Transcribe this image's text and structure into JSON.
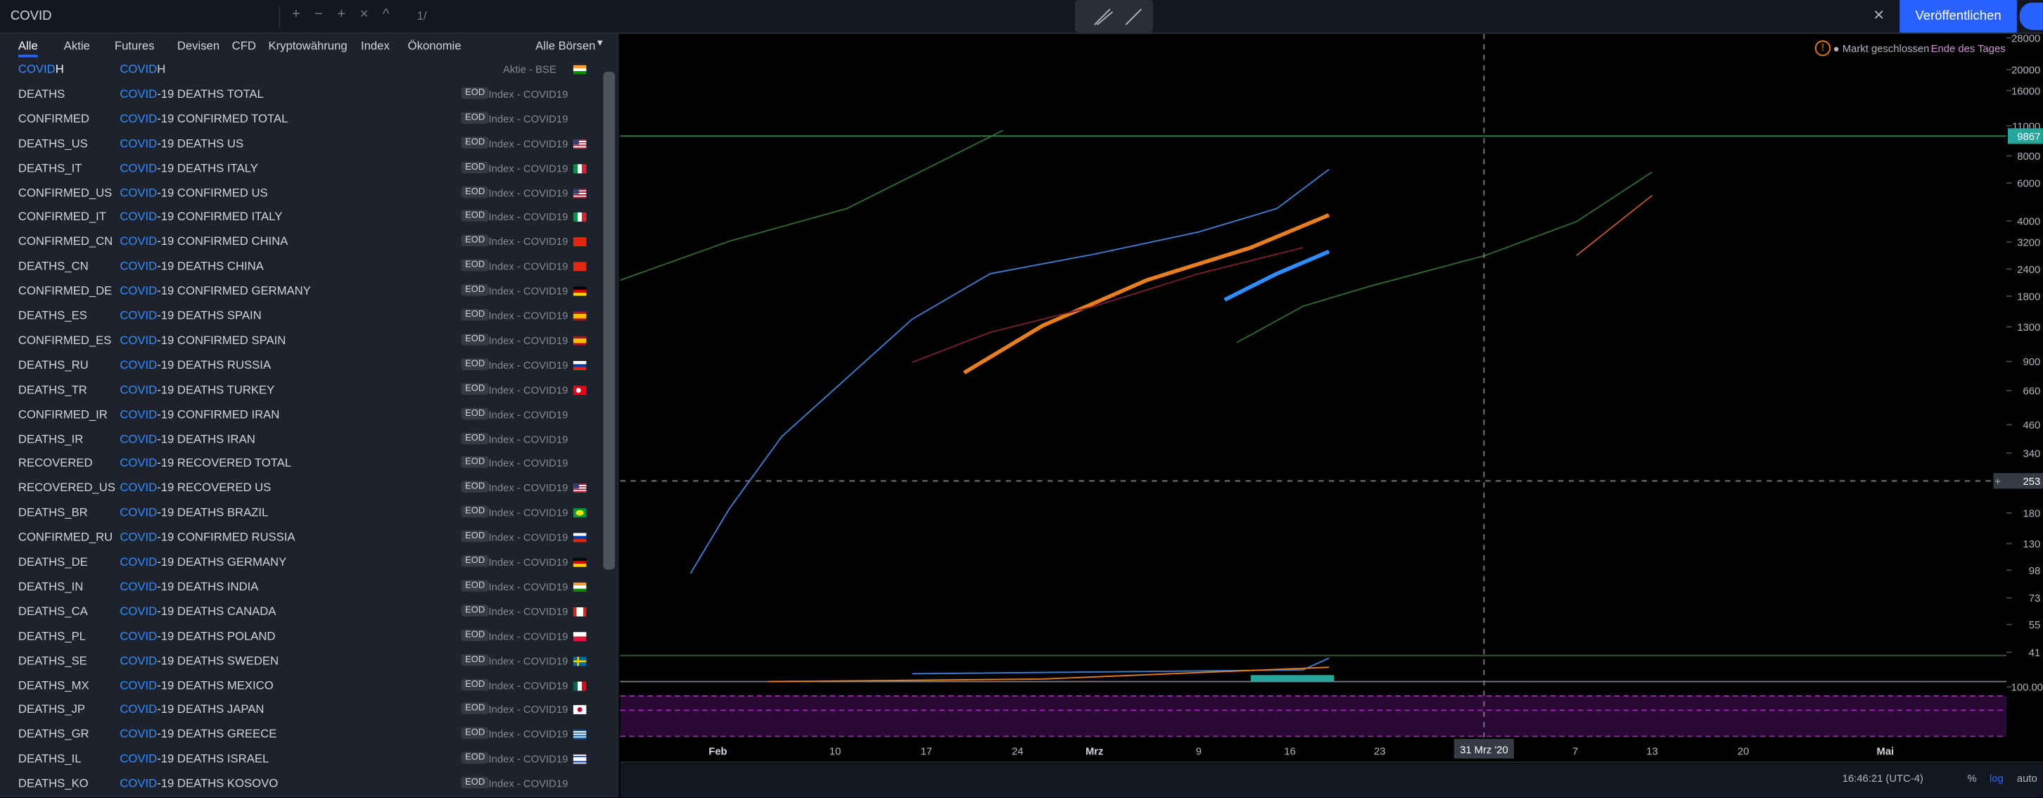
{
  "toolbar": {
    "search": "COVID",
    "counter": "1/",
    "publish": "Veröffentlichen"
  },
  "search_panel": {
    "tabs": [
      "Alle",
      "Aktie",
      "Futures",
      "Devisen",
      "CFD",
      "Kryptowährung",
      "Index",
      "Ökonomie"
    ],
    "active_tab": 0,
    "exchange_filter": "Alle Börsen",
    "rows": [
      {
        "symbol": {
          "hl": "COVID",
          "text": "H"
        },
        "description": {
          "hl": "COVID",
          "text": "H"
        },
        "exchange": "Aktie - BSE",
        "flag": "in"
      },
      {
        "symbol": {
          "text": "DEATHS"
        },
        "description": {
          "hl": "COVID",
          "text": "-19 DEATHS TOTAL"
        },
        "badge": "EOD",
        "exchange": "Index - COVID19"
      },
      {
        "symbol": {
          "text": "CONFIRMED"
        },
        "description": {
          "hl": "COVID",
          "text": "-19 CONFIRMED TOTAL"
        },
        "badge": "EOD",
        "exchange": "Index - COVID19"
      },
      {
        "symbol": {
          "text": "DEATHS_US"
        },
        "description": {
          "hl": "COVID",
          "text": "-19 DEATHS US"
        },
        "badge": "EOD",
        "exchange": "Index - COVID19",
        "flag": "us"
      },
      {
        "symbol": {
          "text": "DEATHS_IT"
        },
        "description": {
          "hl": "COVID",
          "text": "-19 DEATHS ITALY"
        },
        "badge": "EOD",
        "exchange": "Index - COVID19",
        "flag": "it"
      },
      {
        "symbol": {
          "text": "CONFIRMED_US"
        },
        "description": {
          "hl": "COVID",
          "text": "-19 CONFIRMED US"
        },
        "badge": "EOD",
        "exchange": "Index - COVID19",
        "flag": "us"
      },
      {
        "symbol": {
          "text": "CONFIRMED_IT"
        },
        "description": {
          "hl": "COVID",
          "text": "-19 CONFIRMED ITALY"
        },
        "badge": "EOD",
        "exchange": "Index - COVID19",
        "flag": "it"
      },
      {
        "symbol": {
          "text": "CONFIRMED_CN"
        },
        "description": {
          "hl": "COVID",
          "text": "-19 CONFIRMED CHINA"
        },
        "badge": "EOD",
        "exchange": "Index - COVID19",
        "flag": "cn"
      },
      {
        "symbol": {
          "text": "DEATHS_CN"
        },
        "description": {
          "hl": "COVID",
          "text": "-19 DEATHS CHINA"
        },
        "badge": "EOD",
        "exchange": "Index - COVID19",
        "flag": "cn"
      },
      {
        "symbol": {
          "text": "CONFIRMED_DE"
        },
        "description": {
          "hl": "COVID",
          "text": "-19 CONFIRMED GERMANY"
        },
        "badge": "EOD",
        "exchange": "Index - COVID19",
        "flag": "de"
      },
      {
        "symbol": {
          "text": "DEATHS_ES"
        },
        "description": {
          "hl": "COVID",
          "text": "-19 DEATHS SPAIN"
        },
        "badge": "EOD",
        "exchange": "Index - COVID19",
        "flag": "es"
      },
      {
        "symbol": {
          "text": "CONFIRMED_ES"
        },
        "description": {
          "hl": "COVID",
          "text": "-19 CONFIRMED SPAIN"
        },
        "badge": "EOD",
        "exchange": "Index - COVID19",
        "flag": "es"
      },
      {
        "symbol": {
          "text": "DEATHS_RU"
        },
        "description": {
          "hl": "COVID",
          "text": "-19 DEATHS RUSSIA"
        },
        "badge": "EOD",
        "exchange": "Index - COVID19",
        "flag": "ru"
      },
      {
        "symbol": {
          "text": "DEATHS_TR"
        },
        "description": {
          "hl": "COVID",
          "text": "-19 DEATHS TURKEY"
        },
        "badge": "EOD",
        "exchange": "Index - COVID19",
        "flag": "tr"
      },
      {
        "symbol": {
          "text": "CONFIRMED_IR"
        },
        "description": {
          "hl": "COVID",
          "text": "-19 CONFIRMED IRAN"
        },
        "badge": "EOD",
        "exchange": "Index - COVID19"
      },
      {
        "symbol": {
          "text": "DEATHS_IR"
        },
        "description": {
          "hl": "COVID",
          "text": "-19 DEATHS IRAN"
        },
        "badge": "EOD",
        "exchange": "Index - COVID19"
      },
      {
        "symbol": {
          "text": "RECOVERED"
        },
        "description": {
          "hl": "COVID",
          "text": "-19 RECOVERED TOTAL"
        },
        "badge": "EOD",
        "exchange": "Index - COVID19"
      },
      {
        "symbol": {
          "text": "RECOVERED_US"
        },
        "description": {
          "hl": "COVID",
          "text": "-19 RECOVERED US"
        },
        "badge": "EOD",
        "exchange": "Index - COVID19",
        "flag": "us"
      },
      {
        "symbol": {
          "text": "DEATHS_BR"
        },
        "description": {
          "hl": "COVID",
          "text": "-19 DEATHS BRAZIL"
        },
        "badge": "EOD",
        "exchange": "Index - COVID19",
        "flag": "br"
      },
      {
        "symbol": {
          "text": "CONFIRMED_RU"
        },
        "description": {
          "hl": "COVID",
          "text": "-19 CONFIRMED RUSSIA"
        },
        "badge": "EOD",
        "exchange": "Index - COVID19",
        "flag": "ru"
      },
      {
        "symbol": {
          "text": "DEATHS_DE"
        },
        "description": {
          "hl": "COVID",
          "text": "-19 DEATHS GERMANY"
        },
        "badge": "EOD",
        "exchange": "Index - COVID19",
        "flag": "de"
      },
      {
        "symbol": {
          "text": "DEATHS_IN"
        },
        "description": {
          "hl": "COVID",
          "text": "-19 DEATHS INDIA"
        },
        "badge": "EOD",
        "exchange": "Index - COVID19",
        "flag": "in"
      },
      {
        "symbol": {
          "text": "DEATHS_CA"
        },
        "description": {
          "hl": "COVID",
          "text": "-19 DEATHS CANADA"
        },
        "badge": "EOD",
        "exchange": "Index - COVID19",
        "flag": "ca"
      },
      {
        "symbol": {
          "text": "DEATHS_PL"
        },
        "description": {
          "hl": "COVID",
          "text": "-19 DEATHS POLAND"
        },
        "badge": "EOD",
        "exchange": "Index - COVID19",
        "flag": "pl"
      },
      {
        "symbol": {
          "text": "DEATHS_SE"
        },
        "description": {
          "hl": "COVID",
          "text": "-19 DEATHS SWEDEN"
        },
        "badge": "EOD",
        "exchange": "Index - COVID19",
        "flag": "se"
      },
      {
        "symbol": {
          "text": "DEATHS_MX"
        },
        "description": {
          "hl": "COVID",
          "text": "-19 DEATHS MEXICO"
        },
        "badge": "EOD",
        "exchange": "Index - COVID19",
        "flag": "mx"
      },
      {
        "symbol": {
          "text": "DEATHS_JP"
        },
        "description": {
          "hl": "COVID",
          "text": "-19 DEATHS JAPAN"
        },
        "badge": "EOD",
        "exchange": "Index - COVID19",
        "flag": "jp"
      },
      {
        "symbol": {
          "text": "DEATHS_GR"
        },
        "description": {
          "hl": "COVID",
          "text": "-19 DEATHS GREECE"
        },
        "badge": "EOD",
        "exchange": "Index - COVID19",
        "flag": "gr"
      },
      {
        "symbol": {
          "text": "DEATHS_IL"
        },
        "description": {
          "hl": "COVID",
          "text": "-19 DEATHS ISRAEL"
        },
        "badge": "EOD",
        "exchange": "Index - COVID19",
        "flag": "il"
      },
      {
        "symbol": {
          "text": "DEATHS_KO"
        },
        "description": {
          "hl": "COVID",
          "text": "-19 DEATHS KOSOVO"
        },
        "badge": "EOD",
        "exchange": "Index - COVID19"
      }
    ]
  },
  "chart": {
    "status": "Markt geschlossen",
    "session": "Ende des Tages",
    "price_ticks": [
      28000,
      20000,
      16000,
      11000,
      8000,
      6000,
      4000,
      3200,
      2400,
      1800,
      1300,
      900,
      660,
      460,
      340,
      180,
      130,
      98,
      73,
      55,
      41
    ],
    "log_scale": true,
    "last_price": 9867,
    "crosshair_price": 253,
    "lower_pane_tick": {
      "value": 100,
      "label": "100.00"
    },
    "time_labels": [
      "Feb",
      "10",
      "17",
      "24",
      "Mrz",
      "9",
      "16",
      "23",
      "7",
      "13",
      "20",
      "Mai"
    ],
    "time_crosshair": "31 Mrz '20",
    "clock": "16:46:21 (UTC-4)",
    "scale_buttons": [
      "%",
      "log",
      "auto"
    ]
  }
}
